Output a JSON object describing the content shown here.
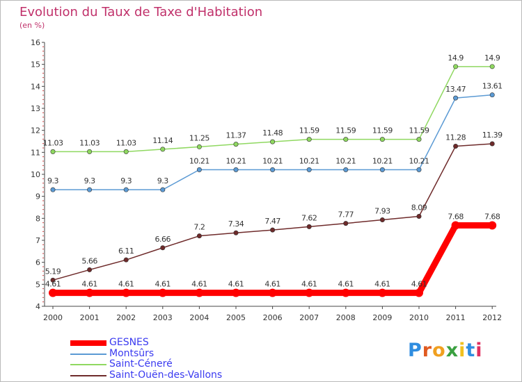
{
  "title": "Evolution du Taux de Taxe d'Habitation",
  "unit_label": "(en %)",
  "brand": {
    "text": "Proxiti",
    "letter_colors": [
      "#2f8de0",
      "#e05a20",
      "#f0a020",
      "#3aa040",
      "#f0c020",
      "#2f8de0",
      "#e03060"
    ]
  },
  "chart_data": {
    "type": "line",
    "title": "Evolution du Taux de Taxe d'Habitation",
    "ylabel": "(en %)",
    "xlabel": "",
    "x": [
      "2000",
      "2001",
      "2002",
      "2003",
      "2004",
      "2005",
      "2006",
      "2007",
      "2008",
      "2009",
      "2010",
      "2011",
      "2012"
    ],
    "ylim": [
      4,
      16
    ],
    "yticks": [
      "4",
      "5",
      "6",
      "7",
      "8",
      "9",
      "10",
      "11",
      "12",
      "13",
      "14",
      "15",
      "16"
    ],
    "grid": false,
    "legend_position": "bottom-left",
    "series": [
      {
        "name": "GESNES",
        "color": "#ff0000",
        "values": [
          4.61,
          4.61,
          4.61,
          4.61,
          4.61,
          4.61,
          4.61,
          4.61,
          4.61,
          4.61,
          4.61,
          7.68,
          7.68
        ],
        "labels": [
          "4.61",
          "4.61",
          "4.61",
          "4.61",
          "4.61",
          "4.61",
          "4.61",
          "4.61",
          "4.61",
          "4.61",
          "4.61",
          "7.68",
          "7.68"
        ]
      },
      {
        "name": "Montsûrs",
        "color": "#5b9ad4",
        "values": [
          9.3,
          9.3,
          9.3,
          9.3,
          10.21,
          10.21,
          10.21,
          10.21,
          10.21,
          10.21,
          10.21,
          13.47,
          13.61
        ],
        "labels": [
          "9.3",
          "9.3",
          "9.3",
          "9.3",
          "10.21",
          "10.21",
          "10.21",
          "10.21",
          "10.21",
          "10.21",
          "10.21",
          "13.47",
          "13.61"
        ]
      },
      {
        "name": "Saint-Céneré",
        "color": "#8fd860",
        "values": [
          11.03,
          11.03,
          11.03,
          11.14,
          11.25,
          11.37,
          11.48,
          11.59,
          11.59,
          11.59,
          11.59,
          14.9,
          14.9
        ],
        "labels": [
          "11.03",
          "11.03",
          "11.03",
          "11.14",
          "11.25",
          "11.37",
          "11.48",
          "11.59",
          "11.59",
          "11.59",
          "11.59",
          "14.9",
          "14.9"
        ]
      },
      {
        "name": "Saint-Ouën-des-Vallons",
        "color": "#6e2a2a",
        "values": [
          5.19,
          5.66,
          6.11,
          6.66,
          7.2,
          7.34,
          7.47,
          7.62,
          7.77,
          7.93,
          8.09,
          11.28,
          11.39
        ],
        "labels": [
          "5.19",
          "5.66",
          "6.11",
          "6.66",
          "7.2",
          "7.34",
          "7.47",
          "7.62",
          "7.77",
          "7.93",
          "8.09",
          "11.28",
          "11.39"
        ]
      }
    ]
  }
}
